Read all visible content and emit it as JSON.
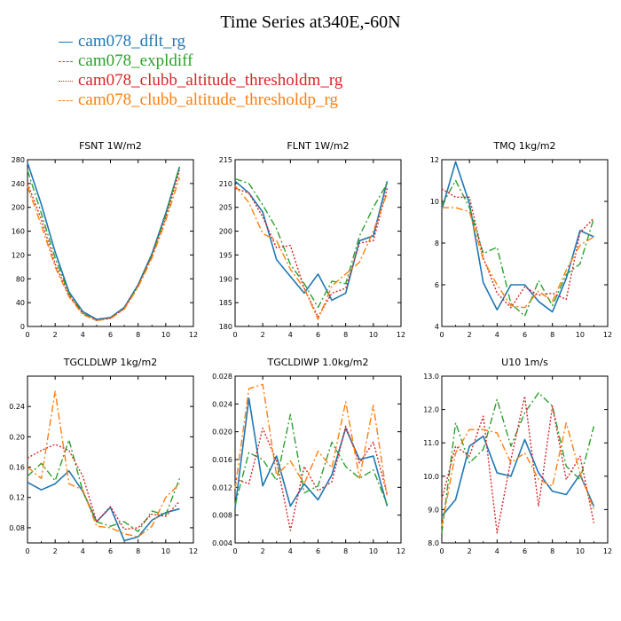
{
  "title": "Time Series at340E,-60N",
  "legend": [
    {
      "label": "cam078_dflt_rg",
      "color": "#1f77b4",
      "dash": "solid"
    },
    {
      "label": "cam078_expldiff",
      "color": "#2ca02c",
      "dash": "dashdot"
    },
    {
      "label": "cam078_clubb_altitude_thresholdm_rg",
      "color": "#d62728",
      "dash": "dotted"
    },
    {
      "label": "cam078_clubb_altitude_thresholdp_rg",
      "color": "#ff7f0e",
      "dash": "dashdot"
    }
  ],
  "chart_data": [
    {
      "type": "line",
      "title": "FSNT   1W/m2",
      "xlim": [
        0,
        12
      ],
      "ylim": [
        0,
        280
      ],
      "xticks": [
        0,
        2,
        4,
        6,
        8,
        10,
        12
      ],
      "yticks": [
        0,
        40,
        80,
        120,
        160,
        200,
        240,
        280
      ],
      "ytick_labels": [
        "0",
        "40",
        "80",
        "120",
        "160",
        "200",
        "240",
        "280"
      ],
      "x": [
        0,
        1,
        2,
        3,
        4,
        5,
        6,
        7,
        8,
        9,
        10,
        11
      ],
      "series": [
        {
          "name": "cam078_dflt_rg",
          "values": [
            275,
            205,
            125,
            58,
            25,
            12,
            15,
            32,
            70,
            122,
            190,
            268
          ]
        },
        {
          "name": "cam078_expldiff",
          "values": [
            262,
            190,
            115,
            55,
            22,
            10,
            14,
            30,
            68,
            120,
            187,
            270
          ]
        },
        {
          "name": "cam078_clubb_altitude_thresholdm_rg",
          "values": [
            240,
            180,
            105,
            52,
            22,
            10,
            14,
            30,
            68,
            118,
            182,
            262
          ]
        },
        {
          "name": "cam078_clubb_altitude_thresholdp_rg",
          "values": [
            235,
            170,
            100,
            50,
            20,
            10,
            13,
            29,
            66,
            115,
            178,
            250
          ]
        }
      ]
    },
    {
      "type": "line",
      "title": "FLNT   1W/m2",
      "xlim": [
        0,
        12
      ],
      "ylim": [
        180,
        215
      ],
      "xticks": [
        0,
        2,
        4,
        6,
        8,
        10,
        12
      ],
      "yticks": [
        180,
        185,
        190,
        195,
        200,
        205,
        210,
        215
      ],
      "ytick_labels": [
        "180",
        "185",
        "190",
        "195",
        "200",
        "205",
        "210",
        "215"
      ],
      "x": [
        0,
        1,
        2,
        3,
        4,
        5,
        6,
        7,
        8,
        9,
        10,
        11
      ],
      "series": [
        {
          "name": "cam078_dflt_rg",
          "values": [
            210.5,
            208,
            204,
            194,
            190.5,
            187,
            191,
            185.5,
            187,
            198,
            199,
            210.5
          ]
        },
        {
          "name": "cam078_expldiff",
          "values": [
            211,
            210,
            205.5,
            200.5,
            193,
            189,
            184,
            189.5,
            189,
            199,
            205,
            210
          ]
        },
        {
          "name": "cam078_clubb_altitude_thresholdm_rg",
          "values": [
            209,
            208,
            203,
            196.5,
            197,
            188,
            182,
            187,
            188,
            197.5,
            198,
            209
          ]
        },
        {
          "name": "cam078_clubb_altitude_thresholdp_rg",
          "values": [
            209.5,
            206,
            199.5,
            198,
            192,
            188,
            181.5,
            188.5,
            191,
            193.5,
            200,
            208
          ]
        }
      ]
    },
    {
      "type": "line",
      "title": "TMQ   1kg/m2",
      "xlim": [
        0,
        12
      ],
      "ylim": [
        4,
        12
      ],
      "xticks": [
        0,
        2,
        4,
        6,
        8,
        10,
        12
      ],
      "yticks": [
        4,
        6,
        8,
        10,
        12
      ],
      "ytick_labels": [
        "4",
        "6",
        "8",
        "10",
        "12"
      ],
      "x": [
        0,
        1,
        2,
        3,
        4,
        5,
        6,
        7,
        8,
        9,
        10,
        11
      ],
      "series": [
        {
          "name": "cam078_dflt_rg",
          "values": [
            9.6,
            11.9,
            9.9,
            6.1,
            4.8,
            6,
            6,
            5.2,
            4.7,
            6.3,
            8.6,
            8.3
          ]
        },
        {
          "name": "cam078_expldiff",
          "values": [
            9.8,
            11,
            9.7,
            7.5,
            7.8,
            5.1,
            4.5,
            6.2,
            5,
            6.5,
            7,
            9.2
          ]
        },
        {
          "name": "cam078_clubb_altitude_thresholdm_rg",
          "values": [
            10.6,
            10.2,
            10.2,
            7.3,
            5.6,
            4.9,
            5.9,
            5.5,
            5.6,
            5.3,
            8.5,
            9.2
          ]
        },
        {
          "name": "cam078_clubb_altitude_thresholdp_rg",
          "values": [
            9.7,
            9.7,
            9.5,
            7.2,
            6,
            5,
            4.9,
            5.7,
            5.2,
            6.7,
            7.9,
            8.3
          ]
        }
      ]
    },
    {
      "type": "line",
      "title": "TGCLDLWP   1kg/m2",
      "xlim": [
        0,
        12
      ],
      "ylim": [
        0.06,
        0.28
      ],
      "xticks": [
        0,
        2,
        4,
        6,
        8,
        10,
        12
      ],
      "yticks": [
        0.08,
        0.12,
        0.16,
        0.2,
        0.24
      ],
      "ytick_labels": [
        "0.08",
        "0.12",
        "0.16",
        "0.20",
        "0.24"
      ],
      "x": [
        0,
        1,
        2,
        3,
        4,
        5,
        6,
        7,
        8,
        9,
        10,
        11
      ],
      "series": [
        {
          "name": "cam078_dflt_rg",
          "values": [
            0.14,
            0.13,
            0.138,
            0.155,
            0.128,
            0.088,
            0.107,
            0.063,
            0.068,
            0.09,
            0.1,
            0.105
          ]
        },
        {
          "name": "cam078_expldiff",
          "values": [
            0.148,
            0.165,
            0.142,
            0.196,
            0.128,
            0.088,
            0.082,
            0.088,
            0.075,
            0.102,
            0.097,
            0.145
          ]
        },
        {
          "name": "cam078_clubb_altitude_thresholdm_rg",
          "values": [
            0.172,
            0.182,
            0.19,
            0.182,
            0.148,
            0.088,
            0.108,
            0.078,
            0.08,
            0.098,
            0.095,
            0.115
          ]
        },
        {
          "name": "cam078_clubb_altitude_thresholdp_rg",
          "values": [
            0.16,
            0.145,
            0.26,
            0.138,
            0.13,
            0.082,
            0.08,
            0.072,
            0.068,
            0.082,
            0.12,
            0.138
          ]
        }
      ]
    },
    {
      "type": "line",
      "title": "TGCLDIWP   1.0kg/m2",
      "xlim": [
        0,
        12
      ],
      "ylim": [
        0.004,
        0.028
      ],
      "xticks": [
        0,
        2,
        4,
        6,
        8,
        10,
        12
      ],
      "yticks": [
        0.004,
        0.008,
        0.012,
        0.016,
        0.02,
        0.024,
        0.028
      ],
      "ytick_labels": [
        "0.004",
        "0.008",
        "0.012",
        "0.016",
        "0.020",
        "0.024",
        "0.028"
      ],
      "x": [
        0,
        1,
        2,
        3,
        4,
        5,
        6,
        7,
        8,
        9,
        10,
        11
      ],
      "series": [
        {
          "name": "cam078_dflt_rg",
          "values": [
            0.009,
            0.0248,
            0.0122,
            0.0165,
            0.0093,
            0.0125,
            0.0102,
            0.0138,
            0.0205,
            0.016,
            0.0165,
            0.0093
          ]
        },
        {
          "name": "cam078_expldiff",
          "values": [
            0.0095,
            0.017,
            0.016,
            0.013,
            0.0225,
            0.0112,
            0.0122,
            0.0185,
            0.015,
            0.0133,
            0.0145,
            0.0095
          ]
        },
        {
          "name": "cam078_clubb_altitude_thresholdm_rg",
          "values": [
            0.0132,
            0.0125,
            0.0205,
            0.0158,
            0.0058,
            0.015,
            0.0115,
            0.0128,
            0.0208,
            0.0155,
            0.0185,
            0.011
          ]
        },
        {
          "name": "cam078_clubb_altitude_thresholdp_rg",
          "values": [
            0.0118,
            0.0262,
            0.0268,
            0.0137,
            0.0158,
            0.0125,
            0.0172,
            0.0148,
            0.0243,
            0.0133,
            0.0238,
            0.0105
          ]
        }
      ]
    },
    {
      "type": "line",
      "title": "U10   1m/s",
      "xlim": [
        0,
        12
      ],
      "ylim": [
        8,
        13
      ],
      "xticks": [
        0,
        2,
        4,
        6,
        8,
        10,
        12
      ],
      "yticks": [
        8,
        9,
        10,
        11,
        12,
        13
      ],
      "ytick_labels": [
        "8.0",
        "9.0",
        "10.0",
        "11.0",
        "12.0",
        "13.0"
      ],
      "x": [
        0,
        1,
        2,
        3,
        4,
        5,
        6,
        7,
        8,
        9,
        10,
        11
      ],
      "series": [
        {
          "name": "cam078_dflt_rg",
          "values": [
            8.8,
            9.3,
            10.9,
            11.2,
            10.1,
            10,
            11.1,
            10.1,
            9.55,
            9.45,
            10.05,
            9.1
          ]
        },
        {
          "name": "cam078_expldiff",
          "values": [
            8.3,
            11.6,
            10.4,
            10.8,
            12.3,
            10.9,
            11.9,
            12.5,
            12.1,
            10.3,
            9.9,
            11.5
          ]
        },
        {
          "name": "cam078_clubb_altitude_thresholdm_rg",
          "values": [
            9.3,
            10.9,
            10.6,
            11.8,
            8.3,
            10.5,
            12.4,
            9.1,
            12.1,
            9.9,
            10.6,
            8.6
          ]
        },
        {
          "name": "cam078_clubb_altitude_thresholdp_rg",
          "values": [
            8.5,
            10.7,
            11.4,
            11.4,
            11.3,
            10.4,
            10.7,
            9.9,
            9.7,
            11.6,
            10.1,
            9
          ]
        }
      ]
    }
  ]
}
